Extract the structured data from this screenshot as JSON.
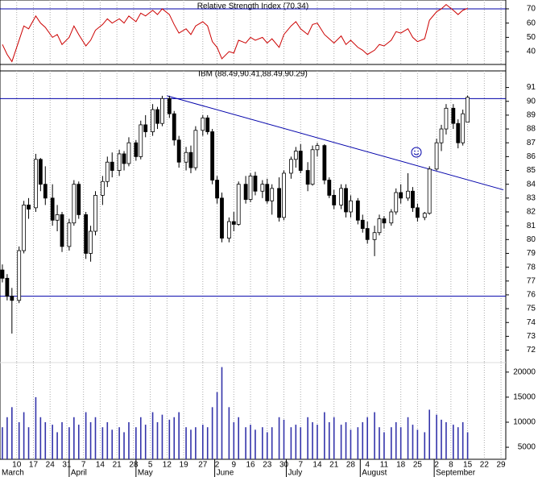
{
  "chart_data": {
    "type": "candlestick",
    "title": "IBM (88.49,90.41,88.49,90.29)",
    "xlim": [
      2,
      214
    ],
    "xticks": [
      {
        "value": 9,
        "label": "10"
      },
      {
        "value": 16,
        "label": "17"
      },
      {
        "value": 23,
        "label": "24"
      },
      {
        "value": 30,
        "label": "31"
      },
      {
        "value": 37,
        "label": "7"
      },
      {
        "value": 44,
        "label": "14"
      },
      {
        "value": 51,
        "label": "21"
      },
      {
        "value": 58,
        "label": "28"
      },
      {
        "value": 65,
        "label": "5"
      },
      {
        "value": 72,
        "label": "12"
      },
      {
        "value": 79,
        "label": "19"
      },
      {
        "value": 87,
        "label": "27"
      },
      {
        "value": 93,
        "label": "2"
      },
      {
        "value": 100,
        "label": "9"
      },
      {
        "value": 107,
        "label": "16"
      },
      {
        "value": 114,
        "label": "23"
      },
      {
        "value": 121,
        "label": "30"
      },
      {
        "value": 128,
        "label": "7"
      },
      {
        "value": 135,
        "label": "14"
      },
      {
        "value": 142,
        "label": "21"
      },
      {
        "value": 149,
        "label": "28"
      },
      {
        "value": 156,
        "label": "4"
      },
      {
        "value": 163,
        "label": "11"
      },
      {
        "value": 170,
        "label": "18"
      },
      {
        "value": 177,
        "label": "25"
      },
      {
        "value": 185,
        "label": "2"
      },
      {
        "value": 191,
        "label": "8"
      },
      {
        "value": 198,
        "label": "15"
      },
      {
        "value": 205,
        "label": "22"
      },
      {
        "value": 212,
        "label": "29"
      }
    ],
    "months": [
      {
        "value": 0,
        "label": "March"
      },
      {
        "value": 31,
        "label": "April"
      },
      {
        "value": 59,
        "label": "May"
      },
      {
        "value": 92,
        "label": "June"
      },
      {
        "value": 122,
        "label": "July"
      },
      {
        "value": 153,
        "label": "August"
      },
      {
        "value": 184,
        "label": "September"
      }
    ],
    "ylim": [
      71.1,
      92.2
    ],
    "yticks": [
      72,
      73,
      74,
      75,
      76,
      77,
      78,
      79,
      80,
      81,
      82,
      83,
      84,
      85,
      86,
      87,
      88,
      89,
      90,
      91
    ],
    "hlines": [
      90.2,
      75.9
    ],
    "trendline": {
      "x": [
        72,
        213
      ],
      "y": [
        90.4,
        83.6
      ]
    },
    "up_color": "#ffffff",
    "down_color": "#000000",
    "line_color": "#0000aa",
    "x": [
      3,
      5,
      7,
      10,
      12,
      14,
      17,
      19,
      21,
      24,
      26,
      28,
      31,
      33,
      35,
      38,
      40,
      42,
      45,
      47,
      49,
      52,
      54,
      56,
      59,
      61,
      63,
      66,
      68,
      70,
      73,
      75,
      77,
      80,
      82,
      84,
      87,
      89,
      91,
      93,
      95,
      98,
      100,
      102,
      105,
      107,
      109,
      112,
      114,
      116,
      119,
      121,
      124,
      126,
      128,
      131,
      133,
      135,
      138,
      140,
      142,
      145,
      147,
      149,
      152,
      154,
      156,
      159,
      161,
      163,
      166,
      168,
      170,
      173,
      175,
      177,
      180,
      182,
      185,
      187,
      189,
      192,
      194,
      196,
      198
    ],
    "open": [
      77.8,
      77.2,
      75.9,
      75.6,
      79.2,
      82.5,
      82.3,
      85.8,
      84,
      83,
      81.4,
      81.8,
      79.5,
      81.2,
      84,
      81.8,
      79,
      80.6,
      83.2,
      84.2,
      85.6,
      85,
      86.2,
      85.5,
      87,
      86,
      88.3,
      87.8,
      89.4,
      88.4,
      90.2,
      89.1,
      87.2,
      85.6,
      86.3,
      85.2,
      87.9,
      88.8,
      87.8,
      84.3,
      83,
      80.1,
      81.3,
      81.1,
      84,
      82.9,
      84.6,
      83.5,
      84,
      82.8,
      83.7,
      81.6,
      84.8,
      85.8,
      86.4,
      85,
      84,
      86.5,
      86.8,
      84.3,
      83.2,
      82.5,
      83.7,
      82,
      82.8,
      81.4,
      80.8,
      80,
      80.5,
      81.5,
      81.2,
      82,
      83.4,
      83,
      83.5,
      82.3,
      81.6,
      81.9,
      85.1,
      87,
      88,
      89.5,
      88.4,
      87,
      88.49
    ],
    "high": [
      78.2,
      77.5,
      76.5,
      79.5,
      82.8,
      83,
      86.2,
      85.9,
      85.3,
      84,
      82.5,
      82,
      81.5,
      84.3,
      84.2,
      82,
      81,
      83.5,
      84.6,
      86,
      86.3,
      86.5,
      86.4,
      87.4,
      87.2,
      88.6,
      89,
      89.8,
      89.6,
      90.4,
      90.4,
      89.3,
      87.5,
      86.7,
      86.8,
      88.2,
      89,
      89,
      88,
      84.6,
      83.4,
      81.6,
      82,
      84.2,
      84.6,
      84.8,
      84.9,
      84.3,
      84.4,
      84,
      84.5,
      85,
      86,
      86.7,
      86.9,
      85.6,
      86.8,
      87,
      86.9,
      84.5,
      83.6,
      84,
      84,
      83.2,
      83,
      81.8,
      81.3,
      81,
      81.8,
      81.7,
      82.2,
      83.7,
      84,
      84.8,
      83.8,
      82.6,
      82,
      85.3,
      87.3,
      88.3,
      89.8,
      89.8,
      88.7,
      89.4,
      90.41
    ],
    "low": [
      76.9,
      75.6,
      73.2,
      75.4,
      79,
      81.5,
      82,
      83.5,
      82.5,
      81,
      80.6,
      79.1,
      79.2,
      81,
      81.5,
      78.6,
      78.4,
      80.3,
      82.5,
      83.8,
      84.5,
      84.6,
      85,
      85.3,
      85.7,
      85.8,
      87.4,
      87.5,
      88,
      88.2,
      88.8,
      86.8,
      85.2,
      85,
      84.8,
      85,
      87.5,
      87.6,
      84,
      82.6,
      79.8,
      79.8,
      80.6,
      81,
      82.6,
      82.7,
      83.2,
      83,
      82.6,
      81.8,
      81.3,
      81.4,
      84.4,
      85.2,
      84.8,
      83.5,
      83.9,
      86,
      84,
      83,
      82.2,
      82.2,
      81.6,
      81.6,
      81.1,
      80.5,
      79.7,
      78.8,
      80.3,
      80.8,
      81,
      81.8,
      82.6,
      82.8,
      82,
      81.3,
      81.4,
      81.8,
      85,
      86.4,
      87.6,
      88,
      86.6,
      86.8,
      88.49
    ],
    "close": [
      77.2,
      75.9,
      75.6,
      79.2,
      82.5,
      82.2,
      85.8,
      84,
      83,
      81.4,
      81.8,
      79.5,
      81.2,
      84,
      81.8,
      79,
      80.6,
      83.2,
      84.2,
      85.6,
      85,
      86.2,
      85.5,
      87,
      86,
      88.3,
      87.8,
      89.4,
      88.4,
      90.2,
      89.1,
      87.2,
      85.6,
      86.3,
      85.2,
      87.9,
      88.8,
      87.8,
      84.3,
      83,
      80.1,
      81.3,
      81.1,
      84,
      82.9,
      84.6,
      83.5,
      84,
      82.8,
      83.7,
      81.6,
      84.8,
      85.8,
      86.4,
      85,
      84,
      86.5,
      86.8,
      84.3,
      83.2,
      82.5,
      83.7,
      82,
      82.8,
      81.4,
      80.8,
      80,
      80.5,
      81.5,
      81.2,
      82,
      83.4,
      83,
      83.5,
      82.3,
      81.6,
      81.9,
      85.1,
      87,
      88,
      89.5,
      88.4,
      87,
      89.1,
      90.29
    ],
    "volume_panel": {
      "ylim": [
        2600,
        21900
      ],
      "yticks": [
        5000,
        10000,
        15000,
        20000
      ],
      "color": "#3333aa",
      "values": [
        9000,
        11000,
        13000,
        10000,
        12000,
        9000,
        15000,
        11000,
        10000,
        9500,
        8000,
        10000,
        9000,
        11000,
        9500,
        12000,
        10000,
        11000,
        9000,
        10000,
        8500,
        9000,
        8000,
        10000,
        9000,
        11000,
        9500,
        12000,
        10000,
        11500,
        10500,
        11000,
        12000,
        9000,
        8500,
        9000,
        9500,
        9000,
        13000,
        16000,
        21000,
        13000,
        10000,
        11000,
        9000,
        9500,
        8500,
        9000,
        8000,
        9000,
        11000,
        10500,
        9000,
        9500,
        9000,
        11000,
        10000,
        9500,
        12000,
        10000,
        11000,
        9500,
        10000,
        8500,
        9000,
        10000,
        11000,
        12000,
        9000,
        8000,
        9000,
        10000,
        9000,
        11000,
        9500,
        8500,
        8000,
        12500,
        11500,
        10500,
        10000,
        9500,
        9000,
        10000,
        8000
      ]
    },
    "rsi_panel": {
      "title": "Relative Strength Index (70.34)",
      "ylim": [
        31,
        76.2
      ],
      "yticks": [
        40,
        50,
        60,
        70
      ],
      "hlines": [
        70
      ],
      "color": "#cc0000",
      "values": [
        45,
        38,
        33,
        48,
        58,
        56,
        65,
        60,
        57,
        50,
        52,
        45,
        50,
        58,
        52,
        44,
        48,
        55,
        59,
        63,
        60,
        63,
        60,
        65,
        61,
        67,
        65,
        69,
        66,
        70,
        66,
        59,
        53,
        56,
        52,
        58,
        61,
        58,
        47,
        43,
        35,
        40,
        39,
        48,
        46,
        50,
        48,
        50,
        46,
        49,
        43,
        52,
        58,
        61,
        56,
        52,
        59,
        60,
        52,
        49,
        46,
        51,
        45,
        48,
        43,
        41,
        38,
        41,
        45,
        44,
        48,
        54,
        53,
        56,
        50,
        47,
        49,
        62,
        68,
        70,
        73,
        69,
        66,
        69,
        70.34
      ]
    }
  }
}
